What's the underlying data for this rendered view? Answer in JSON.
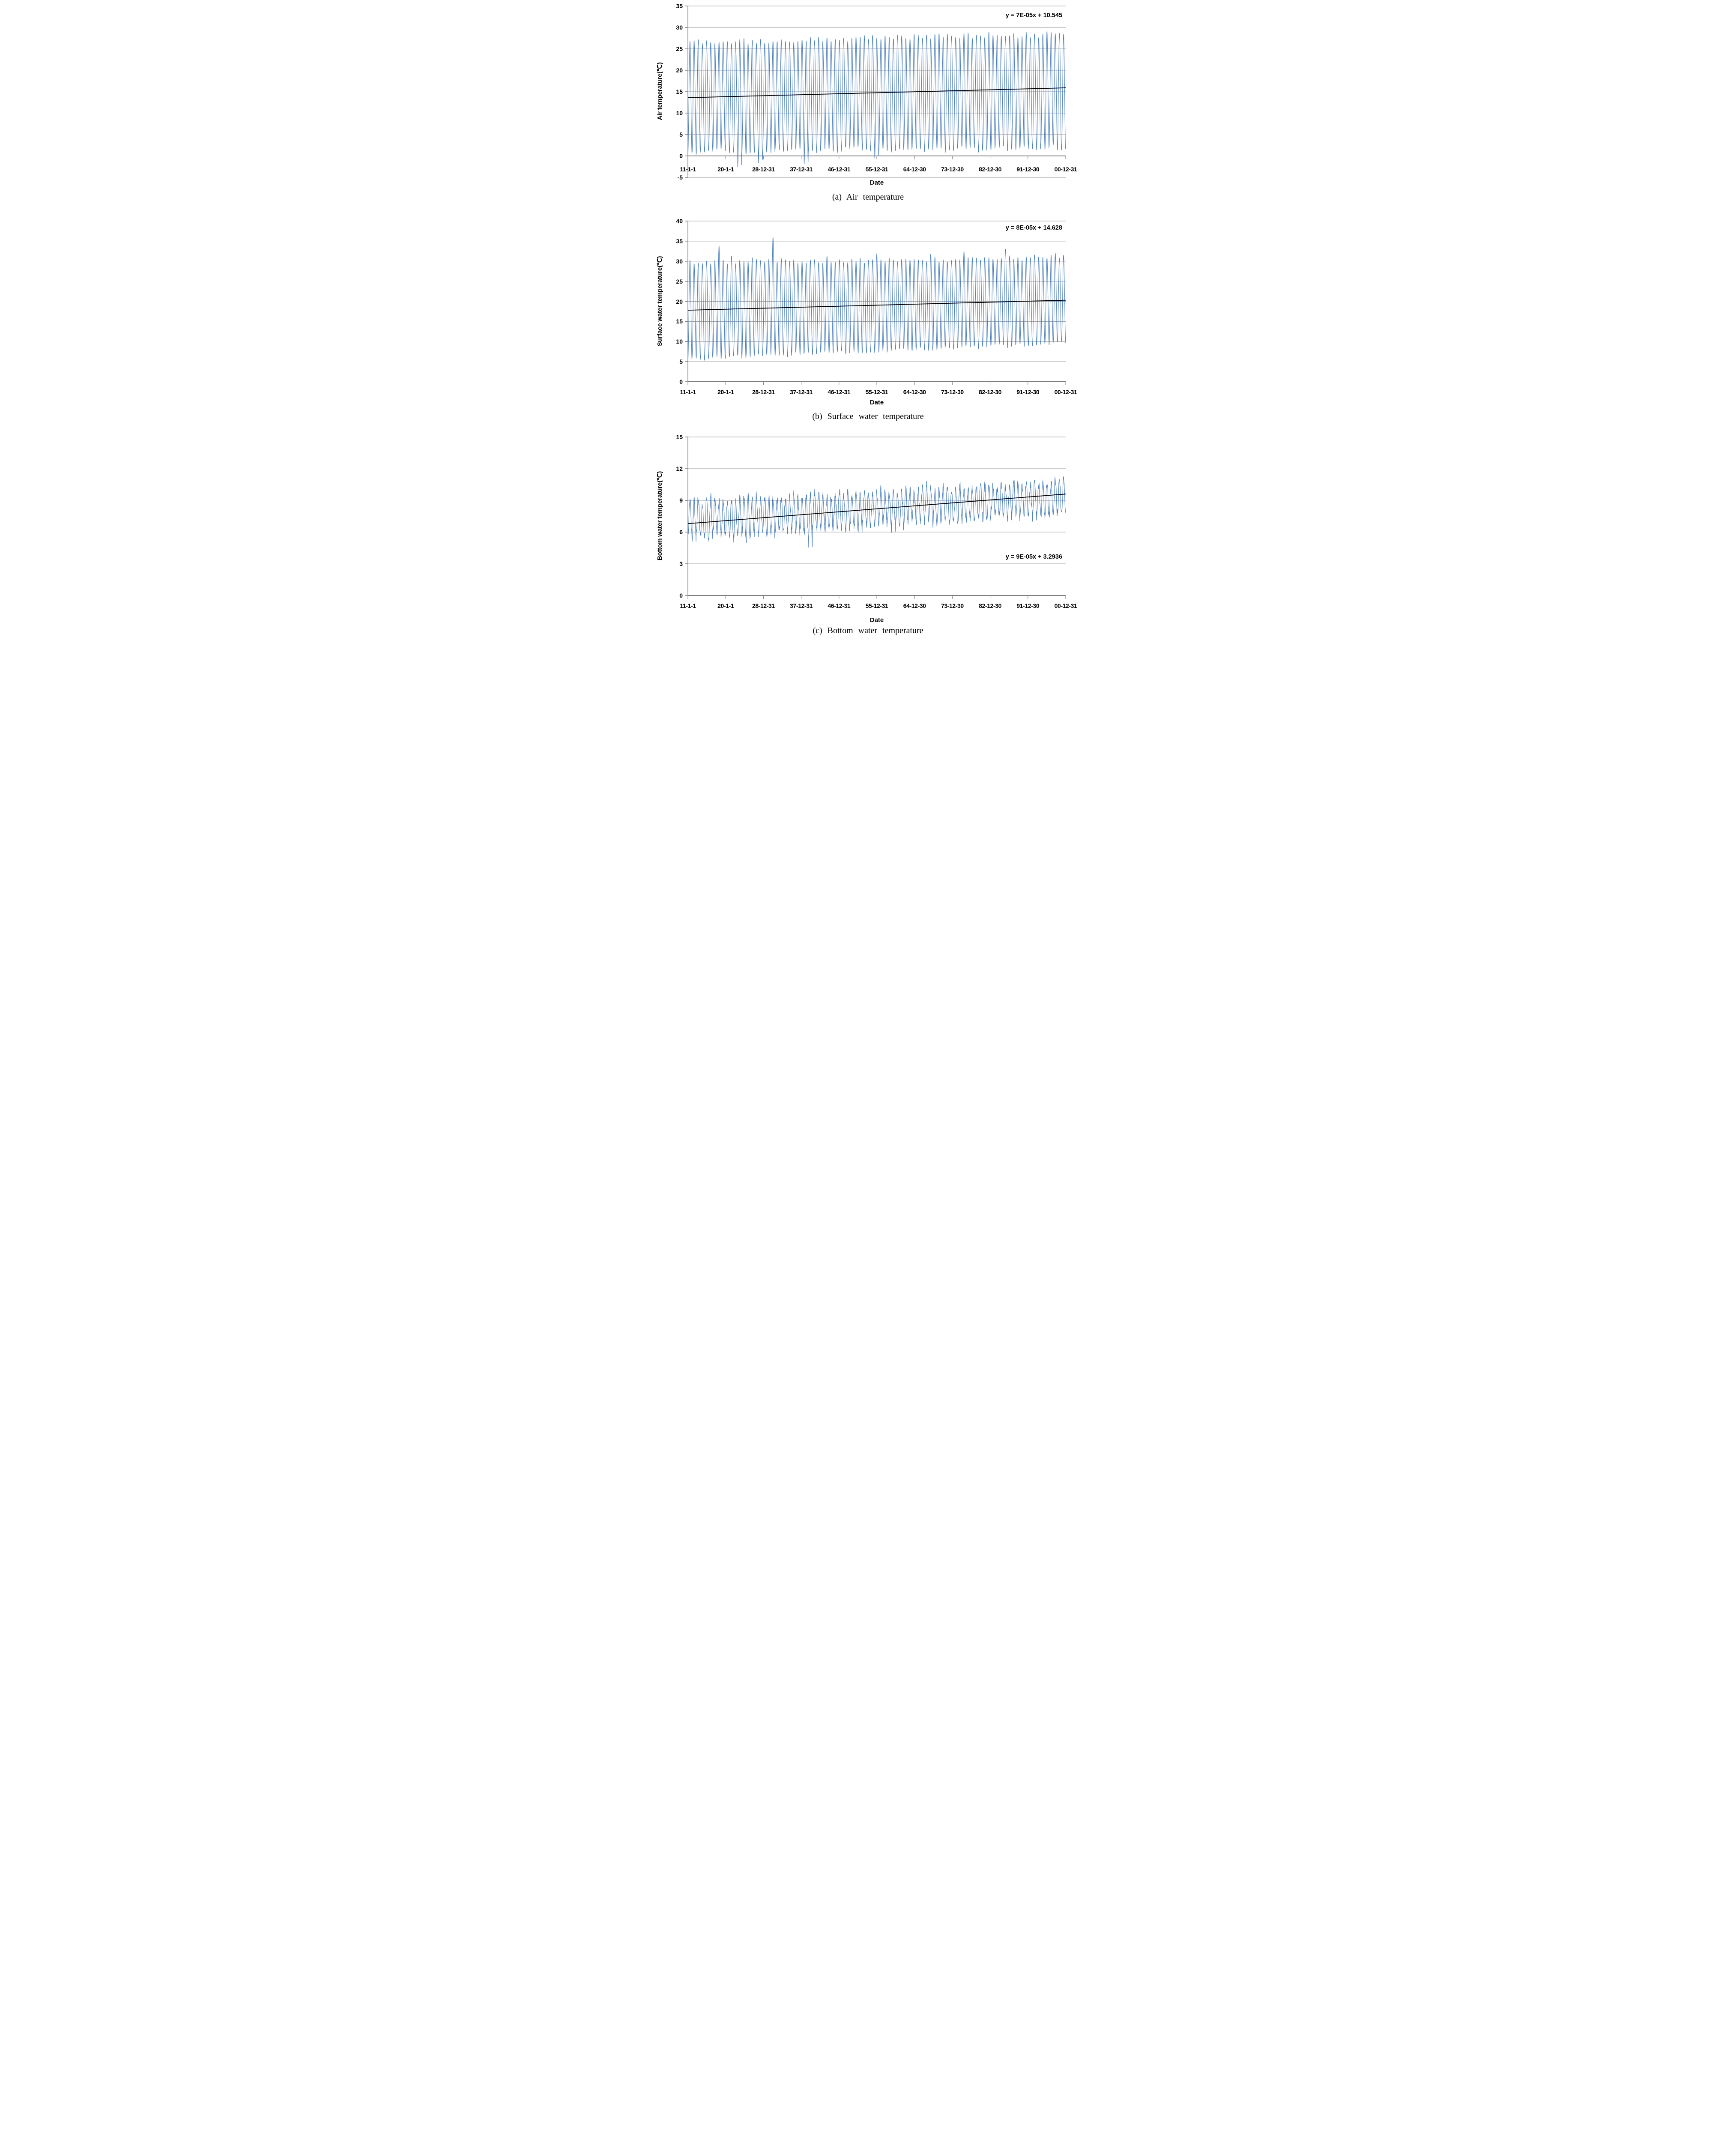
{
  "figure": {
    "background": "#ffffff"
  },
  "chart_data": [
    {
      "type": "line",
      "panel": "a",
      "caption": "(a) Air temperature",
      "ylabel": "Air temperature(℃)",
      "xlabel": "Date",
      "equation_label": "y = 7E-05x + 10.545",
      "ylim": [
        -5,
        35
      ],
      "yticks": [
        35,
        30,
        25,
        20,
        15,
        10,
        5,
        0,
        -5
      ],
      "x_categories": [
        "11-1-1",
        "20-1-1",
        "28-12-31",
        "37-12-31",
        "46-12-31",
        "55-12-31",
        "64-12-30",
        "73-12-30",
        "82-12-30",
        "91-12-30",
        "00-12-31"
      ],
      "grid": true,
      "legend": "none",
      "colors": {
        "series": "#4F81BD",
        "trend": "#000000",
        "gridline": "#9b9b9b",
        "axis": "#7f7f7f"
      },
      "trendline": {
        "start_value": 13.6,
        "end_value": 15.9
      },
      "seasonal_series": {
        "years": 91,
        "samples_per_year": 26,
        "winter_min_start": 0.9,
        "winter_min_end": 2.0,
        "summer_max_start": 26.6,
        "summer_max_end": 28.6,
        "peak_jitter": 0.7,
        "trough_jitter": 0.8,
        "sample_noise": 0.15,
        "anomalies": [
          {
            "year": 12,
            "min": -2.6
          },
          {
            "year": 17,
            "min": -1.5
          },
          {
            "year": 28,
            "min": -1.9
          },
          {
            "year": 45,
            "min": -0.5
          }
        ]
      }
    },
    {
      "type": "line",
      "panel": "b",
      "caption": "(b) Surface water temperature",
      "ylabel": "Surface water temperature(℃)",
      "xlabel": "Date",
      "equation_label": "y = 8E-05x + 14.628",
      "ylim": [
        0,
        40
      ],
      "yticks": [
        40,
        35,
        30,
        25,
        20,
        15,
        10,
        5,
        0
      ],
      "x_categories": [
        "11-1-1",
        "20-1-1",
        "28-12-31",
        "37-12-31",
        "46-12-31",
        "55-12-31",
        "64-12-30",
        "73-12-30",
        "82-12-30",
        "91-12-30",
        "00-12-31"
      ],
      "grid": true,
      "legend": "none",
      "colors": {
        "series": "#4F81BD",
        "trend": "#000000",
        "gridline": "#9b9b9b",
        "axis": "#7f7f7f"
      },
      "trendline": {
        "start_value": 17.8,
        "end_value": 20.3
      },
      "seasonal_series": {
        "years": 91,
        "samples_per_year": 26,
        "winter_min_start": 5.6,
        "winter_min_end": 9.6,
        "summer_max_start": 29.8,
        "summer_max_end": 30.9,
        "peak_jitter": 0.6,
        "trough_jitter": 0.5,
        "sample_noise": 0.12,
        "anomalies": [
          {
            "year": 7,
            "max": 33.8
          },
          {
            "year": 10,
            "max": 31.4
          },
          {
            "year": 15,
            "max": 30.9
          },
          {
            "year": 20,
            "max": 36.0
          },
          {
            "year": 33,
            "max": 31.3
          },
          {
            "year": 45,
            "max": 31.8
          },
          {
            "year": 58,
            "max": 31.9
          },
          {
            "year": 66,
            "max": 32.5
          },
          {
            "year": 76,
            "max": 33.0
          },
          {
            "year": 83,
            "max": 31.6
          },
          {
            "year": 88,
            "max": 32.0
          }
        ]
      }
    },
    {
      "type": "line",
      "panel": "c",
      "caption": "(c) Bottom water temperature",
      "ylabel": "Bottom water temperature(℃)",
      "xlabel": "Date",
      "equation_label": "y = 9E-05x + 3.2936",
      "ylim": [
        0,
        15
      ],
      "yticks": [
        15,
        12,
        9,
        6,
        3,
        0
      ],
      "x_categories": [
        "11-1-1",
        "20-1-1",
        "28-12-31",
        "37-12-31",
        "46-12-31",
        "55-12-31",
        "64-12-30",
        "73-12-30",
        "82-12-30",
        "91-12-30",
        "00-12-31"
      ],
      "grid": true,
      "legend": "none",
      "colors": {
        "series": "#4F81BD",
        "trend": "#000000",
        "gridline": "#9b9b9b",
        "axis": "#7f7f7f"
      },
      "trendline": {
        "start_value": 6.8,
        "end_value": 9.6
      },
      "seasonal_series": {
        "years": 91,
        "samples_per_year": 26,
        "winter_min_start": 5.4,
        "winter_min_end": 7.8,
        "summer_max_start": 8.9,
        "summer_max_end": 10.8,
        "peak_jitter": 0.35,
        "trough_jitter": 0.35,
        "sample_noise": 0.28,
        "harmonic": {
          "multiple": 3,
          "amplitude": 0.22
        },
        "anomalies": [
          {
            "year": 14,
            "min": 5.0
          },
          {
            "year": 29,
            "min": 4.8
          }
        ]
      }
    }
  ]
}
